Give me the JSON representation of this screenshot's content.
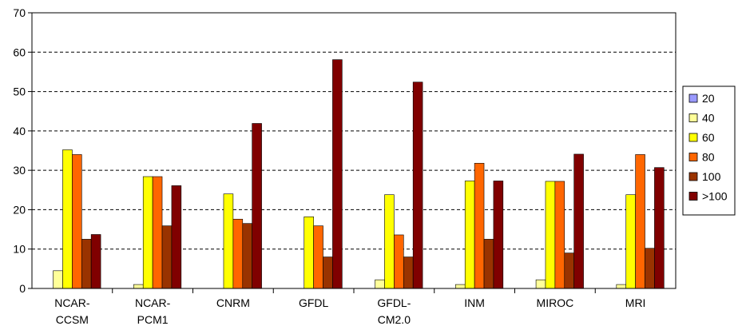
{
  "chart_data": {
    "type": "bar",
    "categories": [
      [
        "NCAR-",
        "CCSM"
      ],
      [
        "NCAR-",
        "PCM1"
      ],
      [
        "CNRM"
      ],
      [
        "GFDL"
      ],
      [
        "GFDL-",
        "CM2.0"
      ],
      [
        "INM"
      ],
      [
        "MIROC"
      ],
      [
        "MRI"
      ]
    ],
    "series": [
      {
        "name": "20",
        "color": "#9999ff",
        "values": [
          0,
          0,
          0,
          0,
          0,
          0,
          0,
          0
        ]
      },
      {
        "name": "40",
        "color": "#ffff99",
        "values": [
          4.5,
          1.0,
          0,
          0,
          2.2,
          1.0,
          2.2,
          1.0
        ]
      },
      {
        "name": "60",
        "color": "#ffff00",
        "values": [
          35.2,
          28.4,
          24.0,
          18.2,
          23.8,
          27.3,
          27.2,
          23.8
        ]
      },
      {
        "name": "80",
        "color": "#ff6600",
        "values": [
          34.0,
          28.4,
          17.6,
          15.9,
          13.6,
          31.8,
          27.2,
          34.0
        ]
      },
      {
        "name": "100",
        "color": "#993300",
        "values": [
          12.5,
          15.9,
          16.5,
          8.0,
          8.0,
          12.5,
          9.0,
          10.2
        ]
      },
      {
        "name": ">100",
        "color": "#800000",
        "values": [
          13.7,
          26.1,
          41.9,
          58.1,
          52.4,
          27.3,
          34.1,
          30.7
        ]
      }
    ],
    "title": "",
    "xlabel": "",
    "ylabel": "",
    "ylim": [
      0,
      70
    ],
    "yticks": [
      0,
      10,
      20,
      30,
      40,
      50,
      60,
      70
    ],
    "grid": "dashed horizontal",
    "legend_position": "right"
  }
}
